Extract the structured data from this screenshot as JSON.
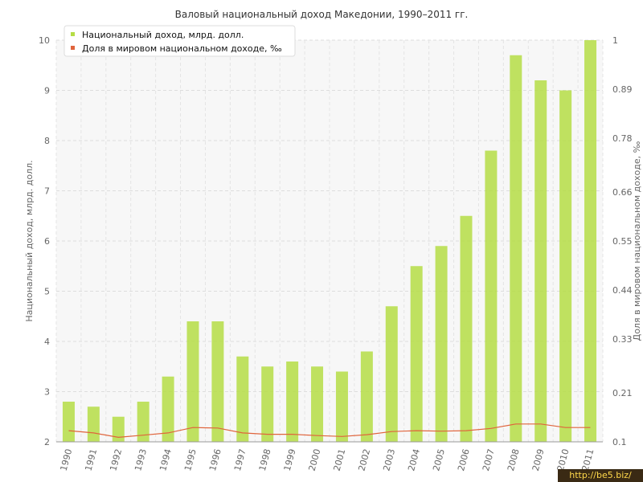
{
  "chart_data": {
    "type": "bar",
    "title": "Валовый национальный доход Македонии, 1990–2011 гг.",
    "categories": [
      "1990",
      "1991",
      "1992",
      "1993",
      "1994",
      "1995",
      "1996",
      "1997",
      "1998",
      "1999",
      "2000",
      "2001",
      "2002",
      "2003",
      "2004",
      "2005",
      "2006",
      "2007",
      "2008",
      "2009",
      "2010",
      "2011"
    ],
    "series": [
      {
        "name": "Национальный доход, млрд. долл.",
        "type": "bar",
        "axis": "left",
        "color": "#b5dd45",
        "values": [
          2.8,
          2.7,
          2.5,
          2.8,
          3.3,
          4.4,
          4.4,
          3.7,
          3.5,
          3.6,
          3.5,
          3.4,
          3.8,
          4.7,
          5.5,
          5.9,
          6.5,
          7.8,
          9.7,
          9.2,
          9.0,
          10.0
        ]
      },
      {
        "name": "Доля в мировом национальном доходе, ‰",
        "type": "line",
        "axis": "right",
        "color": "#e0643c",
        "values": [
          0.125,
          0.12,
          0.11,
          0.115,
          0.12,
          0.132,
          0.131,
          0.12,
          0.117,
          0.117,
          0.114,
          0.112,
          0.116,
          0.123,
          0.125,
          0.124,
          0.125,
          0.13,
          0.14,
          0.14,
          0.132,
          0.132
        ]
      }
    ],
    "ylabel": "Национальный доход, млрд. долл.",
    "ylabel_right": "Доля в мировом национальном доходе, ‰",
    "ylim": [
      2,
      10
    ],
    "ylim_right": [
      0.1,
      1
    ],
    "yticks": [
      "2",
      "3",
      "4",
      "5",
      "6",
      "7",
      "8",
      "9",
      "10"
    ],
    "yticks_right": [
      "0.1",
      "0.21",
      "0.33",
      "0.44",
      "0.55",
      "0.66",
      "0.78",
      "0.89",
      "1"
    ],
    "grid": true,
    "legend_position": "top-left"
  },
  "watermark": "http://be5.biz/"
}
